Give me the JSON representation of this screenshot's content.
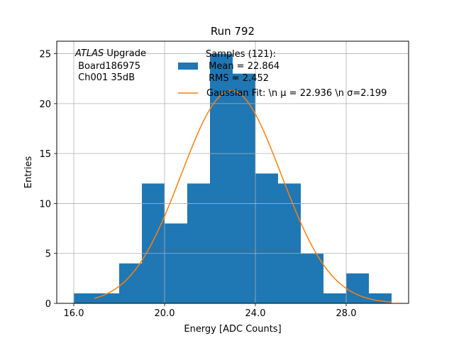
{
  "chart_data": {
    "type": "bar",
    "title": "Run 792",
    "xlabel": "Energy [ADC Counts]",
    "ylabel": "Entries",
    "xlim": [
      15.25,
      30.75
    ],
    "ylim": [
      0,
      26.25
    ],
    "xticks": [
      16,
      20,
      24,
      28
    ],
    "xtick_labels": [
      "16.0",
      "20.0",
      "24.0",
      "28.0"
    ],
    "yticks": [
      0,
      5,
      10,
      15,
      20,
      25
    ],
    "ytick_labels": [
      "0",
      "5",
      "10",
      "15",
      "20",
      "25"
    ],
    "grid": true,
    "histogram": {
      "name": "Samples (121):",
      "color": "#1f77b4",
      "bin_edges": [
        16,
        17,
        18,
        19,
        20,
        21,
        22,
        23,
        24,
        25,
        26,
        27,
        28,
        29,
        30
      ],
      "values": [
        1,
        1,
        4,
        12,
        8,
        12,
        25,
        23,
        13,
        12,
        5,
        1,
        3,
        1
      ]
    },
    "fit": {
      "name": "Gaussian Fit",
      "color": "#ff7f0e",
      "type": "gaussian",
      "amplitude": 21.3,
      "mu": 22.936,
      "sigma": 2.199,
      "x_range": [
        16.9,
        30
      ]
    },
    "annotation_lines": [
      "ATLAS Upgrade",
      " Board186975",
      " Ch001 35dB"
    ],
    "legend": {
      "position": "top-right",
      "entries": [
        {
          "kind": "patch",
          "lines": [
            "Samples (121):",
            " Mean = 22.864",
            " RMS = 2.452"
          ]
        },
        {
          "kind": "line",
          "label": "Gaussian Fit: \\n μ = 22.936 \\n σ=2.199"
        }
      ]
    }
  }
}
